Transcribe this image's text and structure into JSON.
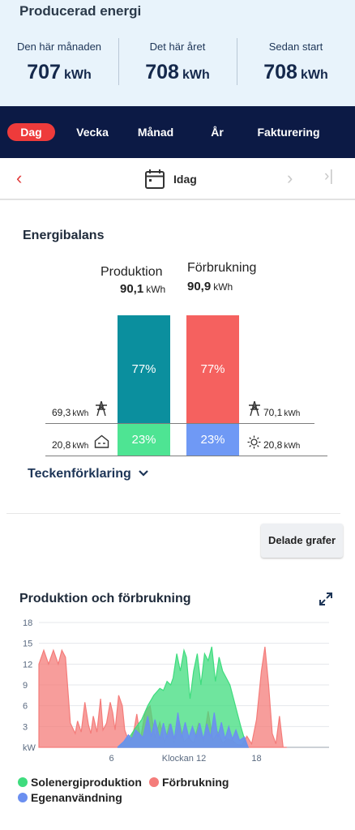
{
  "summary": {
    "title": "Producerad energi",
    "stats": [
      {
        "label": "Den här månaden",
        "value": "707",
        "unit": "kWh"
      },
      {
        "label": "Det här året",
        "value": "708",
        "unit": "kWh"
      },
      {
        "label": "Sedan start",
        "value": "708",
        "unit": "kWh"
      }
    ]
  },
  "tabs": [
    {
      "label": "Dag",
      "active": true
    },
    {
      "label": "Vecka",
      "active": false
    },
    {
      "label": "Månad",
      "active": false
    },
    {
      "label": "År",
      "active": false
    },
    {
      "label": "Fakturering",
      "active": false
    }
  ],
  "datebar": {
    "label": "Idag",
    "prev": "‹",
    "next": "›",
    "last": "›|"
  },
  "balance": {
    "title": "Energibalans",
    "production": {
      "label": "Produktion",
      "value": "90,1",
      "unit": "kWh",
      "grid_pct": 77,
      "grid_pct_label": "77%",
      "self_pct": 23,
      "self_pct_label": "23%"
    },
    "consumption": {
      "label": "Förbrukning",
      "value": "90,9",
      "unit": "kWh",
      "grid_pct": 77,
      "grid_pct_label": "77%",
      "self_pct": 23,
      "self_pct_label": "23%"
    },
    "left_top": {
      "value": "69,3",
      "unit": "kWh",
      "icon": "power-tower-icon"
    },
    "left_bottom": {
      "value": "20,8",
      "unit": "kWh",
      "icon": "house-icon"
    },
    "right_top": {
      "value": "70,1",
      "unit": "kWh",
      "icon": "power-tower-icon"
    },
    "right_bottom": {
      "value": "20,8",
      "unit": "kWh",
      "icon": "sun-icon"
    },
    "legend_toggle": "Teckenförklaring"
  },
  "shared_button": "Delade grafer",
  "chart_section": {
    "title": "Produktion och förbrukning"
  },
  "colors": {
    "production_top": "#0b8f9e",
    "production_bottom": "#4ee493",
    "consumption_top": "#f5615f",
    "consumption_bottom": "#6f99f5",
    "solar": "#3fdc7e",
    "usage": "#f47c7a",
    "self": "#6b8ff0",
    "accent": "#ee3b3b",
    "navy": "#0c1a45"
  },
  "chart_data": {
    "type": "area",
    "title": "Produktion och förbrukning",
    "xlabel": "Klockan 12",
    "ylabel": "kW",
    "yticks": [
      "kW",
      "3",
      "6",
      "9",
      "12",
      "15",
      "18"
    ],
    "xticks": [
      {
        "label": "6",
        "x": 6
      },
      {
        "label": "Klockan 12",
        "x": 12
      },
      {
        "label": "18",
        "x": 18
      }
    ],
    "xlim": [
      0,
      24
    ],
    "ylim": [
      0,
      18
    ],
    "grid": true,
    "legend_position": "bottom",
    "series": [
      {
        "name": "Förbrukning",
        "color": "#f47c7a",
        "x": [
          0,
          0.4,
          0.8,
          1.2,
          1.6,
          1.9,
          2.2,
          2.6,
          3.0,
          3.2,
          3.5,
          3.8,
          4.1,
          4.3,
          4.5,
          4.8,
          5.1,
          5.3,
          5.6,
          5.9,
          6.1,
          6.3,
          6.6,
          6.9,
          7.1,
          7.3,
          7.6,
          7.9,
          8.1,
          8.4,
          8.8,
          9.2,
          9.6,
          10.0,
          10.4,
          10.8,
          11.2,
          11.6,
          12.0,
          12.4,
          12.8,
          13.2,
          13.6,
          14.0,
          14.4,
          14.8,
          15.2,
          15.6,
          16.0,
          16.4,
          16.8,
          17.2,
          17.6,
          18.0,
          18.4,
          18.7,
          19.0,
          19.3,
          19.6,
          19.9,
          20.2,
          20.5
        ],
        "y": [
          12,
          14,
          12,
          14,
          12,
          14,
          13,
          3.5,
          2,
          3.8,
          2.2,
          6.5,
          3.2,
          2,
          4.5,
          2.2,
          7,
          2.5,
          3.5,
          6.5,
          5,
          2.5,
          7.5,
          6,
          2.5,
          1.5,
          1,
          2.8,
          4.8,
          1.2,
          5.2,
          6,
          1.4,
          3.6,
          0.6,
          3.4,
          0.6,
          3.8,
          0.8,
          1.4,
          0.6,
          3.4,
          0.8,
          5.2,
          1,
          2.2,
          0.6,
          1.2,
          1,
          0.4,
          0.3,
          1.6,
          0.5,
          4,
          11,
          14.5,
          9,
          2,
          0.5,
          4.5,
          0,
          0
        ]
      },
      {
        "name": "Solenergiproduktion",
        "color": "#3fdc7e",
        "x": [
          6.5,
          7.0,
          7.5,
          8.0,
          8.5,
          9.0,
          9.5,
          10.0,
          10.3,
          10.6,
          10.9,
          11.1,
          11.4,
          11.7,
          12.0,
          12.2,
          12.5,
          12.8,
          13.1,
          13.4,
          13.7,
          14.0,
          14.3,
          14.6,
          14.9,
          15.2,
          15.5,
          15.8,
          16.1,
          16.4,
          16.7,
          17.0,
          17.3
        ],
        "y": [
          0,
          0.8,
          1.5,
          2.8,
          4,
          6,
          7.5,
          8.5,
          8.2,
          9.5,
          9,
          10,
          13.5,
          11,
          14,
          13,
          7,
          11,
          13.5,
          9,
          13.5,
          12.5,
          14.5,
          9.5,
          13,
          11,
          10,
          9,
          7,
          5,
          3,
          1.2,
          0
        ]
      },
      {
        "name": "Egenanvändning",
        "color": "#6b8ff0",
        "x": [
          6.5,
          7.0,
          7.4,
          7.7,
          8.0,
          8.3,
          8.6,
          9.0,
          9.3,
          9.6,
          10.0,
          10.3,
          10.6,
          10.9,
          11.2,
          11.5,
          11.8,
          12.1,
          12.4,
          12.7,
          13.0,
          13.3,
          13.6,
          13.9,
          14.2,
          14.5,
          14.8,
          15.1,
          15.4,
          15.7,
          16.0,
          16.3,
          16.6,
          17.0,
          17.3
        ],
        "y": [
          0,
          0.8,
          1.8,
          1.2,
          2.5,
          2,
          1.4,
          4.5,
          1.6,
          4,
          1.2,
          3.5,
          1.4,
          3.4,
          1.2,
          5,
          1.4,
          3.6,
          1.4,
          3,
          1.5,
          3.5,
          1.2,
          3.4,
          1.5,
          5,
          1.5,
          3.6,
          1.2,
          3,
          1.2,
          2.5,
          1,
          1.5,
          0
        ]
      }
    ]
  },
  "chart_legend": [
    {
      "label": "Solenergiproduktion",
      "color": "#3fdc7e"
    },
    {
      "label": "Förbrukning",
      "color": "#f47c7a"
    },
    {
      "label": "Egenanvändning",
      "color": "#6b8ff0"
    }
  ]
}
